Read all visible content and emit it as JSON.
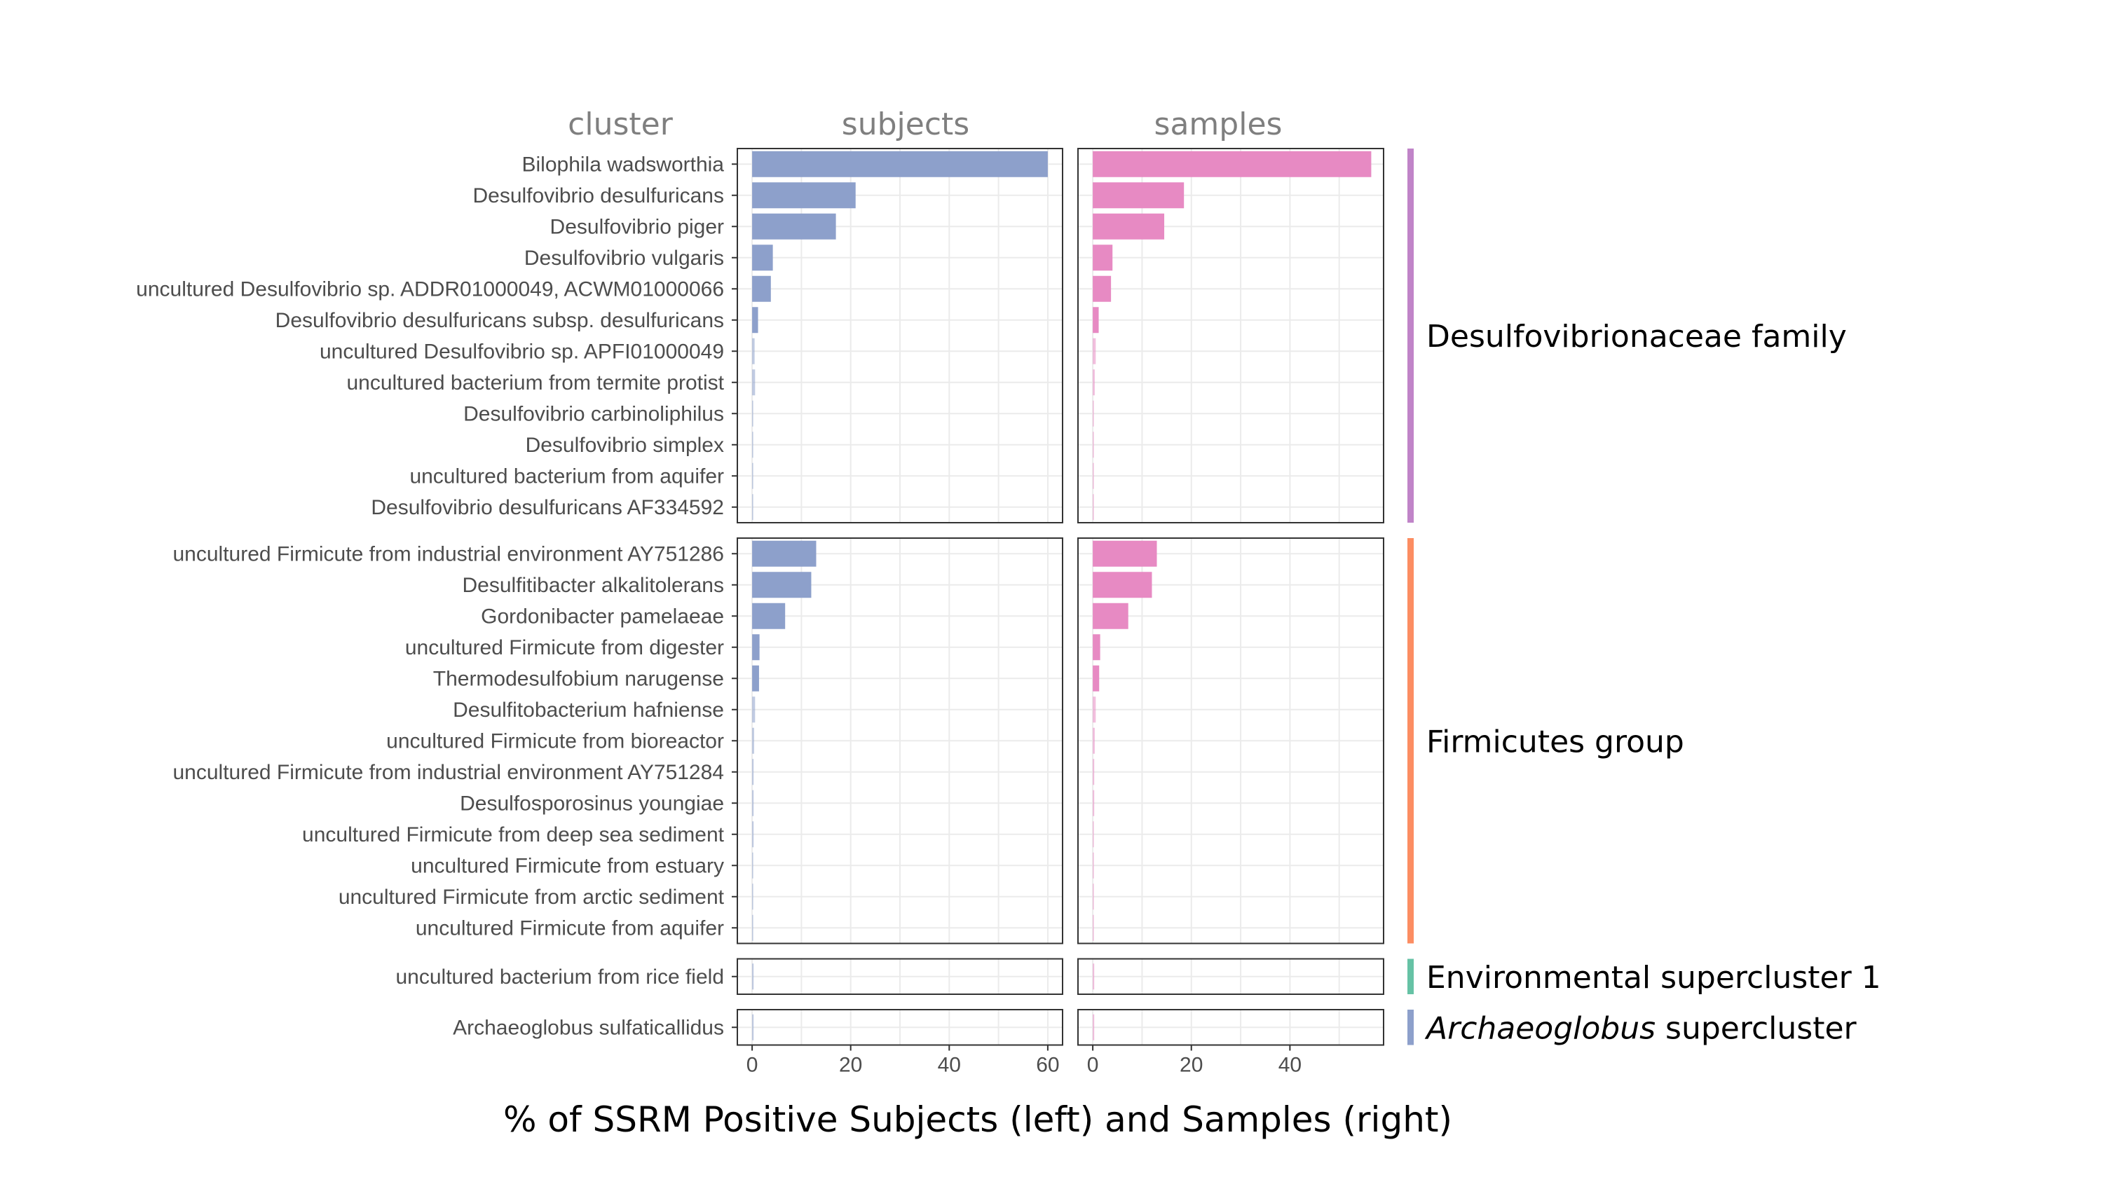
{
  "column_headers": {
    "cluster": "cluster",
    "subjects": "subjects",
    "samples": "samples"
  },
  "x_axis_title": "% of SSRM Positive Subjects (left) and Samples (right)",
  "colors": {
    "subjects_bar": "#8DA0CB",
    "samples_bar": "#E78AC3"
  },
  "chart_data": {
    "type": "bar",
    "orientation": "horizontal",
    "xlabel": "% of SSRM Positive Subjects (left) and Samples (right)",
    "panels": [
      {
        "name": "subjects",
        "xlim": [
          -3,
          63
        ],
        "xticks": [
          0,
          20,
          40,
          60
        ]
      },
      {
        "name": "samples",
        "xlim": [
          -3,
          59
        ],
        "xticks": [
          0,
          20,
          40
        ]
      }
    ],
    "groups": [
      {
        "name": "Desulfovibrionaceae family",
        "italic_part": "",
        "color": "#C084C8",
        "categories": [
          "Bilophila wadsworthia",
          "Desulfovibrio desulfuricans",
          "Desulfovibrio piger",
          "Desulfovibrio vulgaris",
          "uncultured Desulfovibrio sp. ADDR01000049, ACWM01000066",
          "Desulfovibrio desulfuricans subsp. desulfuricans",
          "uncultured Desulfovibrio sp. APFI01000049",
          "uncultured bacterium from termite protist",
          "Desulfovibrio carbinoliphilus",
          "Desulfovibrio simplex",
          "uncultured bacterium from aquifer",
          "Desulfovibrio desulfuricans AF334592"
        ],
        "subjects": [
          60,
          21,
          17,
          4.2,
          3.8,
          1.2,
          0.5,
          0.6,
          0.2,
          0.2,
          0.1,
          0.1
        ],
        "samples": [
          56.5,
          18.5,
          14.5,
          4,
          3.7,
          1.2,
          0.6,
          0.4,
          0.2,
          0.2,
          0.1,
          0.1
        ]
      },
      {
        "name": "Firmicutes group",
        "italic_part": "",
        "color": "#FC8D62",
        "categories": [
          "uncultured Firmicute from industrial environment AY751286",
          "Desulfitibacter alkalitolerans",
          "Gordonibacter pamelaeae",
          "uncultured Firmicute from digester",
          "Thermodesulfobium narugense",
          "Desulfitobacterium hafniense",
          "uncultured Firmicute from bioreactor",
          "uncultured Firmicute from industrial environment AY751284",
          "Desulfosporosinus youngiae",
          "uncultured Firmicute from deep sea sediment",
          "uncultured Firmicute from estuary",
          "uncultured Firmicute from arctic sediment",
          "uncultured Firmicute from aquifer"
        ],
        "subjects": [
          13,
          12,
          6.7,
          1.5,
          1.4,
          0.6,
          0.4,
          0.3,
          0.3,
          0.3,
          0.2,
          0.2,
          0.2
        ],
        "samples": [
          13,
          12,
          7.2,
          1.5,
          1.3,
          0.6,
          0.4,
          0.3,
          0.3,
          0.2,
          0.2,
          0.2,
          0.2
        ]
      },
      {
        "name": "Environmental supercluster 1",
        "italic_part": "",
        "color": "#66C2A5",
        "categories": [
          "uncultured bacterium from rice field"
        ],
        "subjects": [
          0.3
        ],
        "samples": [
          0.3
        ]
      },
      {
        "name": "supercluster",
        "italic_part": "Archaeoglobus",
        "color": "#8DA0CB",
        "categories": [
          "Archaeoglobus sulfaticallidus"
        ],
        "subjects": [
          0.3
        ],
        "samples": [
          0.3
        ]
      }
    ]
  }
}
